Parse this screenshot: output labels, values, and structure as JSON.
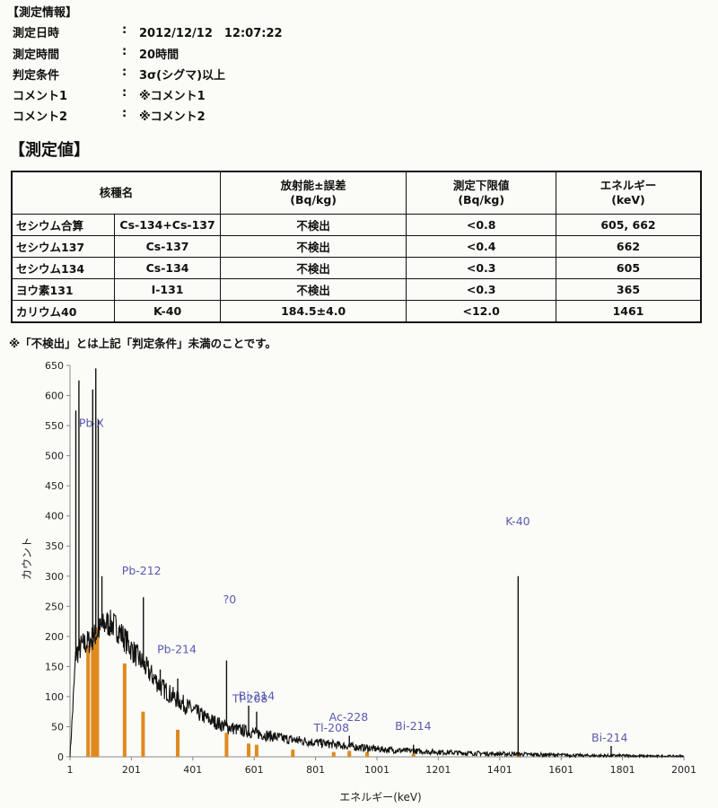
{
  "info": {
    "title": "【測定情報】",
    "rows": [
      {
        "key": "測定日時",
        "colon": ":",
        "value": "2012/12/12　12:07:22"
      },
      {
        "key": "測定時間",
        "colon": ":",
        "value": "20時間"
      },
      {
        "key": "判定条件",
        "colon": ":",
        "value": "3σ(シグマ)以上"
      },
      {
        "key": "コメント1",
        "colon": ":",
        "value": "※コメント1"
      },
      {
        "key": "コメント2",
        "colon": ":",
        "value": "※コメント2"
      }
    ]
  },
  "measurement": {
    "title": "【測定値】",
    "headers": {
      "nuclide": "核種名",
      "activity": "放射能±誤差",
      "activity_unit": "(Bq/kg)",
      "limit": "測定下限値",
      "limit_unit": "(Bq/kg)",
      "energy": "エネルギー",
      "energy_unit": "(keV)"
    },
    "rows": [
      {
        "name": "セシウム合算",
        "symbol": "Cs-134+Cs-137",
        "activity": "不検出",
        "limit": "<0.8",
        "energy": "605, 662"
      },
      {
        "name": "セシウム137",
        "symbol": "Cs-137",
        "activity": "不検出",
        "limit": "<0.4",
        "energy": "662"
      },
      {
        "name": "セシウム134",
        "symbol": "Cs-134",
        "activity": "不検出",
        "limit": "<0.3",
        "energy": "605"
      },
      {
        "name": "ヨウ素131",
        "symbol": "I-131",
        "activity": "不検出",
        "limit": "<0.3",
        "energy": "365"
      },
      {
        "name": "カリウム40",
        "symbol": "K-40",
        "activity": "184.5±4.0",
        "limit": "<12.0",
        "energy": "1461"
      }
    ],
    "note": "※「不検出」とは上記「判定条件」未満のことです。"
  },
  "chart_data": {
    "type": "line",
    "xlabel": "エネルギー(keV)",
    "ylabel": "カウント",
    "xlim": [
      1,
      2001
    ],
    "ylim": [
      0,
      650
    ],
    "xticks": [
      "1",
      "201",
      "401",
      "601",
      "801",
      "1001",
      "1201",
      "1401",
      "1601",
      "1801",
      "2001"
    ],
    "yticks": [
      "0",
      "50",
      "100",
      "150",
      "200",
      "250",
      "300",
      "350",
      "400",
      "450",
      "500",
      "550",
      "600",
      "650"
    ],
    "colors": {
      "spectrum": "#111111",
      "markers": "#e08a1e",
      "labels": "#5a5ab0",
      "axis_text": "#222222"
    },
    "continuum": [
      [
        1,
        0
      ],
      [
        20,
        170
      ],
      [
        40,
        185
      ],
      [
        60,
        190
      ],
      [
        80,
        200
      ],
      [
        100,
        213
      ],
      [
        120,
        222
      ],
      [
        140,
        220
      ],
      [
        160,
        210
      ],
      [
        180,
        195
      ],
      [
        200,
        180
      ],
      [
        230,
        160
      ],
      [
        260,
        140
      ],
      [
        300,
        115
      ],
      [
        350,
        95
      ],
      [
        400,
        78
      ],
      [
        450,
        63
      ],
      [
        500,
        52
      ],
      [
        550,
        45
      ],
      [
        600,
        40
      ],
      [
        650,
        35
      ],
      [
        700,
        30
      ],
      [
        800,
        24
      ],
      [
        900,
        18
      ],
      [
        1000,
        13
      ],
      [
        1100,
        10
      ],
      [
        1200,
        8
      ],
      [
        1300,
        6
      ],
      [
        1400,
        5
      ],
      [
        1500,
        4
      ],
      [
        1600,
        3
      ],
      [
        1700,
        2
      ],
      [
        1800,
        2
      ],
      [
        1900,
        1
      ],
      [
        2001,
        1
      ]
    ],
    "peaks": [
      {
        "x": 20,
        "y": 575
      },
      {
        "x": 30,
        "y": 625
      },
      {
        "x": 75,
        "y": 610
      },
      {
        "x": 85,
        "y": 645
      },
      {
        "x": 93,
        "y": 560
      },
      {
        "x": 105,
        "y": 300
      },
      {
        "x": 240,
        "y": 265
      },
      {
        "x": 295,
        "y": 145
      },
      {
        "x": 352,
        "y": 130
      },
      {
        "x": 511,
        "y": 160
      },
      {
        "x": 583,
        "y": 85
      },
      {
        "x": 609,
        "y": 75
      },
      {
        "x": 911,
        "y": 35
      },
      {
        "x": 969,
        "y": 20
      },
      {
        "x": 1120,
        "y": 20
      },
      {
        "x": 1461,
        "y": 300
      },
      {
        "x": 1764,
        "y": 18
      }
    ],
    "markers": [
      {
        "x": 60,
        "y": 185
      },
      {
        "x": 75,
        "y": 190
      },
      {
        "x": 85,
        "y": 215
      },
      {
        "x": 90,
        "y": 200
      },
      {
        "x": 179,
        "y": 155
      },
      {
        "x": 239,
        "y": 75
      },
      {
        "x": 352,
        "y": 45
      },
      {
        "x": 511,
        "y": 40
      },
      {
        "x": 583,
        "y": 22
      },
      {
        "x": 609,
        "y": 20
      },
      {
        "x": 727,
        "y": 12
      },
      {
        "x": 860,
        "y": 8
      },
      {
        "x": 911,
        "y": 10
      },
      {
        "x": 969,
        "y": 8
      },
      {
        "x": 1120,
        "y": 5
      },
      {
        "x": 1461,
        "y": 8
      },
      {
        "x": 1764,
        "y": 3
      }
    ],
    "labels": [
      {
        "text": "Pb-X",
        "x": 30,
        "y": 548
      },
      {
        "text": "Pb-212",
        "x": 170,
        "y": 303
      },
      {
        "text": "?0",
        "x": 500,
        "y": 255
      },
      {
        "text": "Pb-214",
        "x": 285,
        "y": 172
      },
      {
        "text": "Bi-214",
        "x": 550,
        "y": 95
      },
      {
        "text": "Tl-208",
        "x": 530,
        "y": 90
      },
      {
        "text": "Ac-228",
        "x": 845,
        "y": 60
      },
      {
        "text": "Tl-208",
        "x": 795,
        "y": 42
      },
      {
        "text": "Bi-214",
        "x": 1060,
        "y": 45
      },
      {
        "text": "K-40",
        "x": 1420,
        "y": 385
      },
      {
        "text": "Bi-214",
        "x": 1700,
        "y": 25
      }
    ]
  }
}
